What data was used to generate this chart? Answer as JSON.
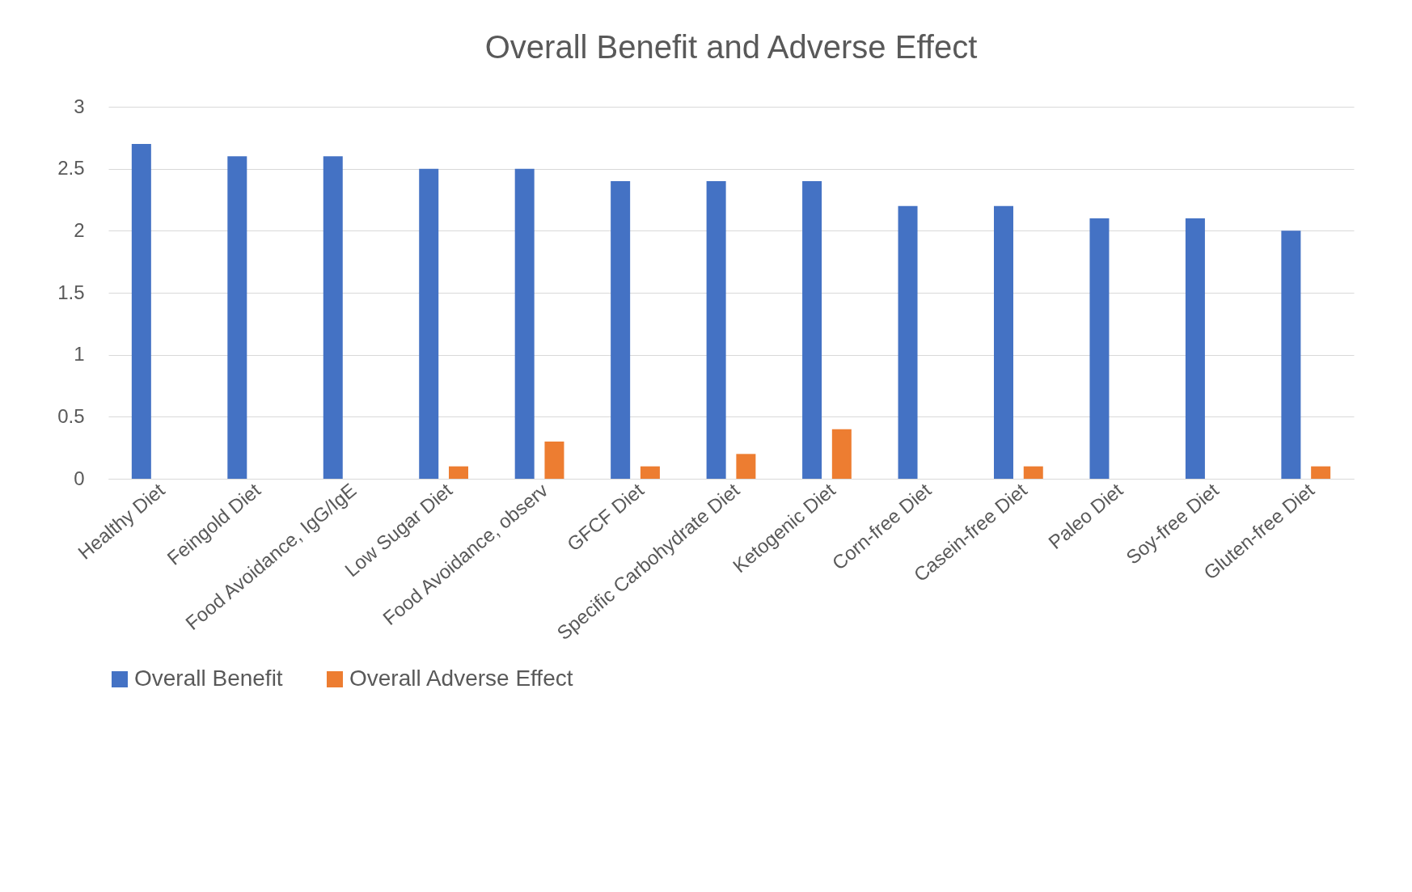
{
  "chart_data": {
    "type": "bar",
    "title": "Overall Benefit and Adverse Effect",
    "categories": [
      "Healthy Diet",
      "Feingold Diet",
      "Food Avoidance, IgG/IgE",
      "Low Sugar Diet",
      "Food Avoidance, observ",
      "GFCF Diet",
      "Specific Carbohydrate Diet",
      "Ketogenic Diet",
      "Corn-free Diet",
      "Casein-free Diet",
      "Paleo Diet",
      "Soy-free Diet",
      "Gluten-free Diet"
    ],
    "series": [
      {
        "name": "Overall Benefit",
        "color": "#4472c4",
        "values": [
          2.7,
          2.6,
          2.6,
          2.5,
          2.5,
          2.4,
          2.4,
          2.4,
          2.2,
          2.2,
          2.1,
          2.1,
          2.0
        ]
      },
      {
        "name": "Overall Adverse Effect",
        "color": "#ed7d31",
        "values": [
          0,
          0,
          0,
          0.1,
          0.3,
          0.1,
          0.2,
          0.4,
          0,
          0.1,
          0,
          0,
          0.1
        ]
      }
    ],
    "ylim": [
      0,
      3
    ],
    "yticks": [
      0,
      0.5,
      1,
      1.5,
      2,
      2.5,
      3
    ],
    "grid": "y",
    "legend": "bottom"
  }
}
